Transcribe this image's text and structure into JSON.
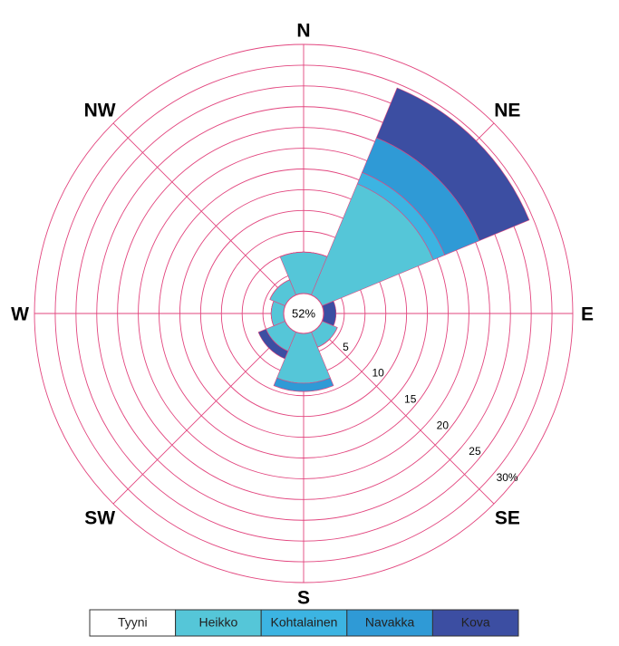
{
  "chart_data": {
    "type": "windrose",
    "categories": [
      "N",
      "NE",
      "E",
      "SE",
      "S",
      "SW",
      "W",
      "NW"
    ],
    "calm": {
      "name": "Tyyni",
      "color": "#ffffff",
      "values": [
        52
      ],
      "value_labels": [
        "52%"
      ]
    },
    "series": [
      {
        "name": "Heikko",
        "color": "#55c6d8",
        "values": [
          5,
          14.5,
          0,
          2,
          6,
          2.5,
          1.5,
          2
        ]
      },
      {
        "name": "Kohtalainen",
        "color": "#3cb4e2",
        "values": [
          0,
          1.5,
          0,
          0,
          0,
          0,
          0,
          0
        ]
      },
      {
        "name": "Navakka",
        "color": "#2f9ad6",
        "values": [
          0,
          4.5,
          0,
          0,
          1,
          0,
          0,
          0
        ]
      },
      {
        "name": "Kova",
        "color": "#3c4ea2",
        "values": [
          0,
          6.5,
          1.5,
          0,
          0,
          1,
          0,
          0
        ]
      }
    ],
    "rlim": [
      0,
      30
    ],
    "rticks": [
      5,
      10,
      15,
      20,
      25,
      {
        "value": 30,
        "label": "30%"
      }
    ],
    "rgrid": [
      2.5,
      5,
      7.5,
      10,
      12.5,
      15,
      17.5,
      20,
      22.5,
      25,
      27.5,
      30
    ],
    "grid_color": "#e2457e"
  }
}
